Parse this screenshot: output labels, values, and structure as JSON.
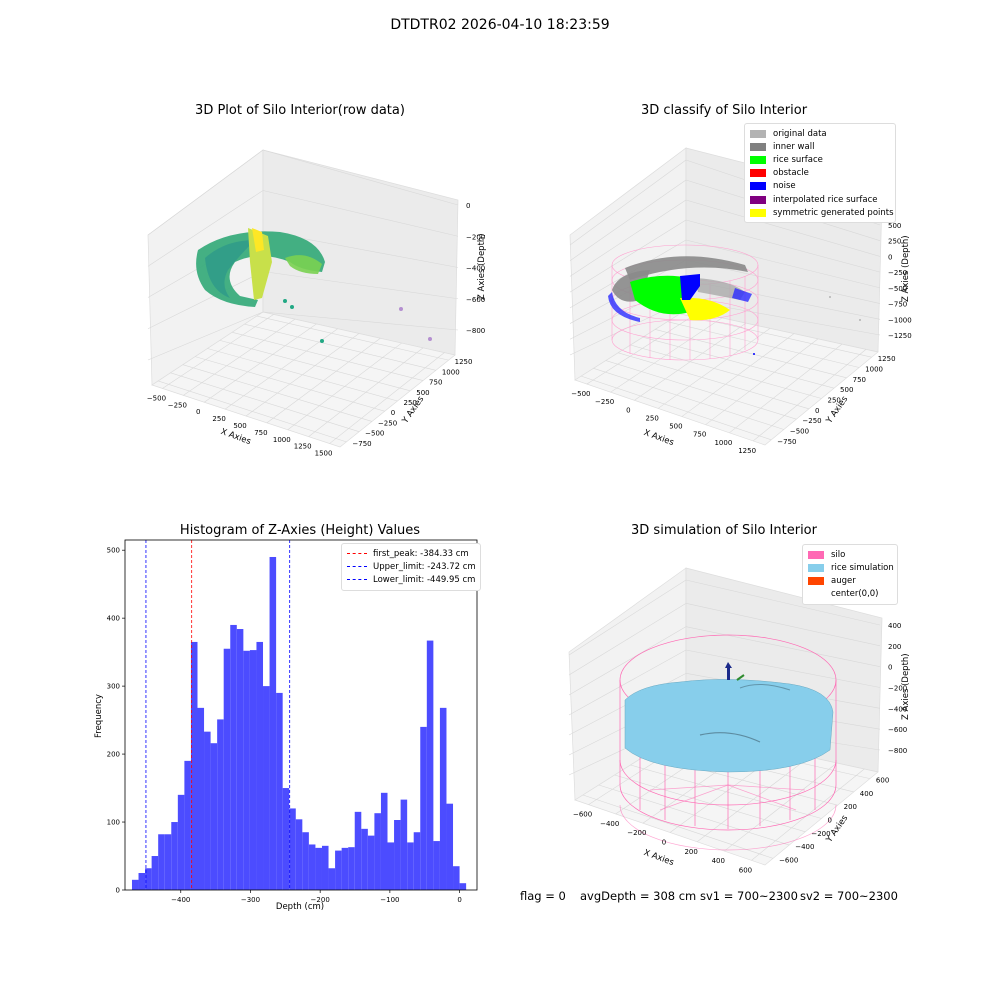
{
  "figure": {
    "suptitle": "DTDTR02 2026-04-10 18:23:59",
    "footer": {
      "flag": "flag = 0",
      "avg_depth": "avgDepth = 308 cm",
      "sv1": "sv1 = 700~2300",
      "sv2": "sv2 = 700~2300"
    }
  },
  "chart_data": [
    {
      "id": "raw",
      "type": "scatter",
      "title": "3D Plot of Silo Interior(row data)",
      "xlabel": "X Axies",
      "ylabel": "Y Axies",
      "zlabel": "Z Axies (Depth)",
      "x_ticks": [
        "−500",
        "−250",
        "0",
        "250",
        "500",
        "750",
        "1000",
        "1250",
        "1500"
      ],
      "y_ticks": [
        "−750",
        "−500",
        "−250",
        "0",
        "250",
        "500",
        "750",
        "1000",
        "1250"
      ],
      "z_ticks": [
        "−800",
        "−600",
        "−400",
        "−200",
        "0"
      ],
      "colormap": [
        "#2a788e",
        "#22a884",
        "#7ad151",
        "#fde725"
      ]
    },
    {
      "id": "classify",
      "type": "scatter",
      "title": "3D classify of Silo Interior",
      "xlabel": "X Axies",
      "ylabel": "Y Axies",
      "zlabel": "Z Axies (Depth)",
      "x_ticks": [
        "−500",
        "−250",
        "0",
        "250",
        "500",
        "750",
        "1000",
        "1250"
      ],
      "y_ticks": [
        "−750",
        "−500",
        "−250",
        "0",
        "250",
        "500",
        "750",
        "1000",
        "1250"
      ],
      "z_ticks": [
        "−1250",
        "−1000",
        "−750",
        "−500",
        "−250",
        "0",
        "250",
        "500"
      ],
      "legend": [
        {
          "label": "original data",
          "color": "#b3b3b3"
        },
        {
          "label": "inner wall",
          "color": "#808080"
        },
        {
          "label": "rice surface",
          "color": "#00ff00"
        },
        {
          "label": "obstacle",
          "color": "#ff0000"
        },
        {
          "label": "noise",
          "color": "#0000ff"
        },
        {
          "label": "interpolated rice surface",
          "color": "#800080"
        },
        {
          "label": "symmetric generated points",
          "color": "#ffff00"
        }
      ]
    },
    {
      "id": "hist",
      "type": "bar",
      "title": "Histogram of Z-Axies (Height) Values",
      "xlabel": "Depth (cm)",
      "ylabel": "Frequency",
      "xlim": [
        -480,
        25
      ],
      "ylim": [
        0,
        515
      ],
      "x_ticks": [
        {
          "v": -400,
          "t": "−400"
        },
        {
          "v": -300,
          "t": "−300"
        },
        {
          "v": -200,
          "t": "−200"
        },
        {
          "v": -100,
          "t": "−100"
        },
        {
          "v": 0,
          "t": "0"
        }
      ],
      "y_ticks": [
        0,
        100,
        200,
        300,
        400,
        500
      ],
      "bin_start": -470,
      "bin_width": 9.4,
      "values": [
        15,
        25,
        32,
        50,
        82,
        82,
        100,
        140,
        190,
        365,
        268,
        233,
        216,
        251,
        355,
        390,
        384,
        352,
        353,
        365,
        300,
        490,
        290,
        150,
        120,
        104,
        85,
        67,
        62,
        65,
        32,
        58,
        62,
        63,
        115,
        90,
        80,
        113,
        143,
        70,
        103,
        133,
        70,
        85,
        240,
        367,
        72,
        268,
        127,
        35,
        10
      ],
      "bar_color": "#4c4cff",
      "lines": [
        {
          "label": "first_peak: -384.33 cm",
          "value": -384.33,
          "color": "#ff0000"
        },
        {
          "label": "Upper_limit: -243.72 cm",
          "value": -243.72,
          "color": "#0000ff"
        },
        {
          "label": "Lower_limit: -449.95 cm",
          "value": -449.95,
          "color": "#0000ff"
        }
      ],
      "legend_position": "top-right"
    },
    {
      "id": "sim",
      "type": "scatter",
      "title": "3D simulation of Silo Interior",
      "xlabel": "X Axies",
      "ylabel": "Y Axies",
      "zlabel": "Z Axies (Depth)",
      "x_ticks": [
        "−600",
        "−400",
        "−200",
        "0",
        "200",
        "400",
        "600"
      ],
      "y_ticks": [
        "−600",
        "−400",
        "−200",
        "0",
        "200",
        "400",
        "600"
      ],
      "z_ticks": [
        "−800",
        "−600",
        "−400",
        "−200",
        "0",
        "200",
        "400"
      ],
      "legend": [
        {
          "label": "silo",
          "color": "#ff69b4"
        },
        {
          "label": "rice simulation",
          "color": "#87ceeb"
        },
        {
          "label": "auger",
          "color": "#ff4500"
        },
        {
          "label": "center(0,0)",
          "color": "#ffffff"
        }
      ]
    }
  ]
}
